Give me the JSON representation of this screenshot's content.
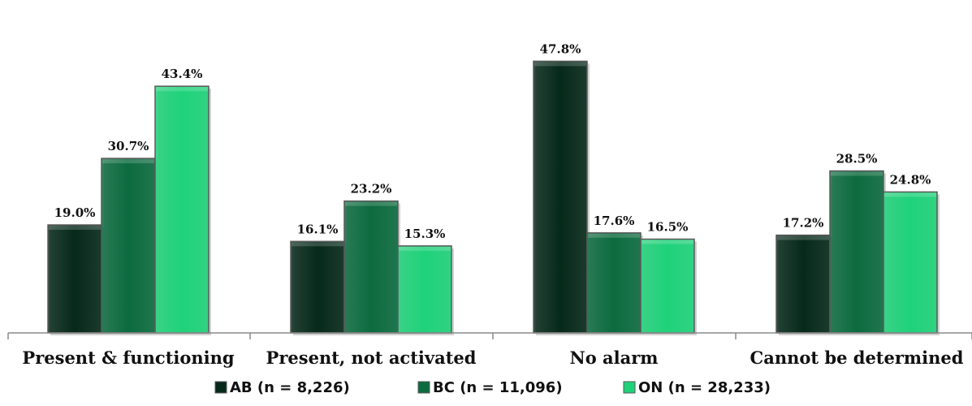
{
  "chart_data": {
    "type": "bar",
    "categories": [
      "Present & functioning",
      "Present, not activated",
      "No alarm",
      "Cannot be determined"
    ],
    "series": [
      {
        "name": "AB (n = 8,226)",
        "values": [
          19.0,
          16.1,
          47.8,
          17.2
        ],
        "value_labels": [
          "19.0%",
          "16.1%",
          "47.8%",
          "17.2%"
        ],
        "color": "#06291a"
      },
      {
        "name": "BC (n = 11,096)",
        "values": [
          30.7,
          23.2,
          17.6,
          28.5
        ],
        "value_labels": [
          "30.7%",
          "23.2%",
          "17.6%",
          "28.5%"
        ],
        "color": "#0c6b3f"
      },
      {
        "name": "ON (n = 28,233)",
        "values": [
          43.4,
          15.3,
          16.5,
          24.8
        ],
        "value_labels": [
          "43.4%",
          "15.3%",
          "16.5%",
          "24.8%"
        ],
        "color": "#1fd27a"
      }
    ],
    "title": "",
    "xlabel": "",
    "ylabel": "",
    "ylim": [
      0,
      50
    ],
    "grid": false,
    "legend_position": "bottom"
  }
}
